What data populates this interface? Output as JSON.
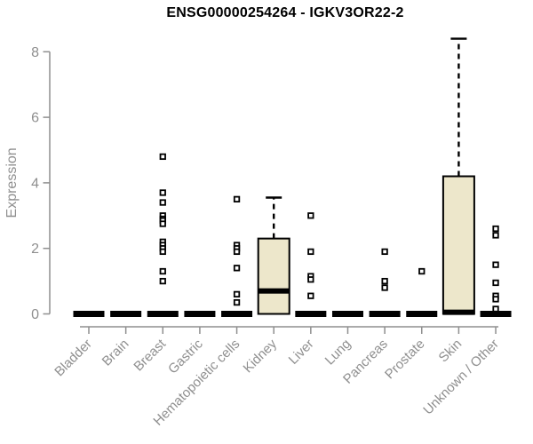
{
  "header": {
    "title": "ENSG00000254264 - IGKV3OR22-2"
  },
  "chart_data": {
    "type": "boxplot",
    "title": "ENSG00000254264 - IGKV3OR22-2",
    "xlabel": "",
    "ylabel": "Expression",
    "ylim": [
      0,
      8.4
    ],
    "yticks": [
      0,
      2,
      4,
      6,
      8
    ],
    "grid": false,
    "legend": "none",
    "categories": [
      "Bladder",
      "Brain",
      "Breast",
      "Gastric",
      "Hematopoietic cells",
      "Kidney",
      "Liver",
      "Lung",
      "Pancreas",
      "Prostate",
      "Skin",
      "Unknown / Other"
    ],
    "series": [
      {
        "category": "Bladder",
        "q1": 0,
        "median": 0,
        "q3": 0,
        "whisker_low": 0,
        "whisker_high": 0,
        "outliers": []
      },
      {
        "category": "Brain",
        "q1": 0,
        "median": 0,
        "q3": 0,
        "whisker_low": 0,
        "whisker_high": 0,
        "outliers": []
      },
      {
        "category": "Breast",
        "q1": 0,
        "median": 0,
        "q3": 0,
        "whisker_low": 0,
        "whisker_high": 0,
        "outliers": [
          4.8,
          3.7,
          3.4,
          3.0,
          2.9,
          2.85,
          2.75,
          2.2,
          2.1,
          2.0,
          1.9,
          1.3,
          1.0
        ]
      },
      {
        "category": "Gastric",
        "q1": 0,
        "median": 0,
        "q3": 0,
        "whisker_low": 0,
        "whisker_high": 0,
        "outliers": []
      },
      {
        "category": "Hematopoietic cells",
        "q1": 0,
        "median": 0,
        "q3": 0,
        "whisker_low": 0,
        "whisker_high": 0,
        "outliers": [
          3.5,
          2.1,
          2.0,
          1.9,
          1.4,
          0.6,
          0.35
        ]
      },
      {
        "category": "Kidney",
        "q1": 0,
        "median": 0.7,
        "q3": 2.3,
        "whisker_low": 0,
        "whisker_high": 3.55,
        "outliers": []
      },
      {
        "category": "Liver",
        "q1": 0,
        "median": 0,
        "q3": 0,
        "whisker_low": 0,
        "whisker_high": 0,
        "outliers": [
          3.0,
          1.9,
          1.15,
          1.05,
          0.55
        ]
      },
      {
        "category": "Lung",
        "q1": 0,
        "median": 0,
        "q3": 0,
        "whisker_low": 0,
        "whisker_high": 0,
        "outliers": []
      },
      {
        "category": "Pancreas",
        "q1": 0,
        "median": 0,
        "q3": 0,
        "whisker_low": 0,
        "whisker_high": 0,
        "outliers": [
          1.9,
          1.0,
          0.8
        ]
      },
      {
        "category": "Prostate",
        "q1": 0,
        "median": 0,
        "q3": 0,
        "whisker_low": 0,
        "whisker_high": 0,
        "outliers": [
          1.3
        ]
      },
      {
        "category": "Skin",
        "q1": 0,
        "median": 0.05,
        "q3": 4.2,
        "whisker_low": 0,
        "whisker_high": 8.4,
        "outliers": []
      },
      {
        "category": "Unknown / Other",
        "q1": 0,
        "median": 0,
        "q3": 0,
        "whisker_low": 0,
        "whisker_high": 0,
        "outliers": [
          2.6,
          2.4,
          1.5,
          0.95,
          0.55,
          0.45,
          0.15
        ]
      }
    ],
    "style": {
      "box_fill": "#EDE7CB",
      "box_stroke": "#000000",
      "median_color": "#000000",
      "outlier_fill": "#ffffff",
      "outlier_stroke": "#000000",
      "axis_color": "#8f8f8f",
      "title_color": "#000000",
      "background": "#ffffff"
    }
  }
}
